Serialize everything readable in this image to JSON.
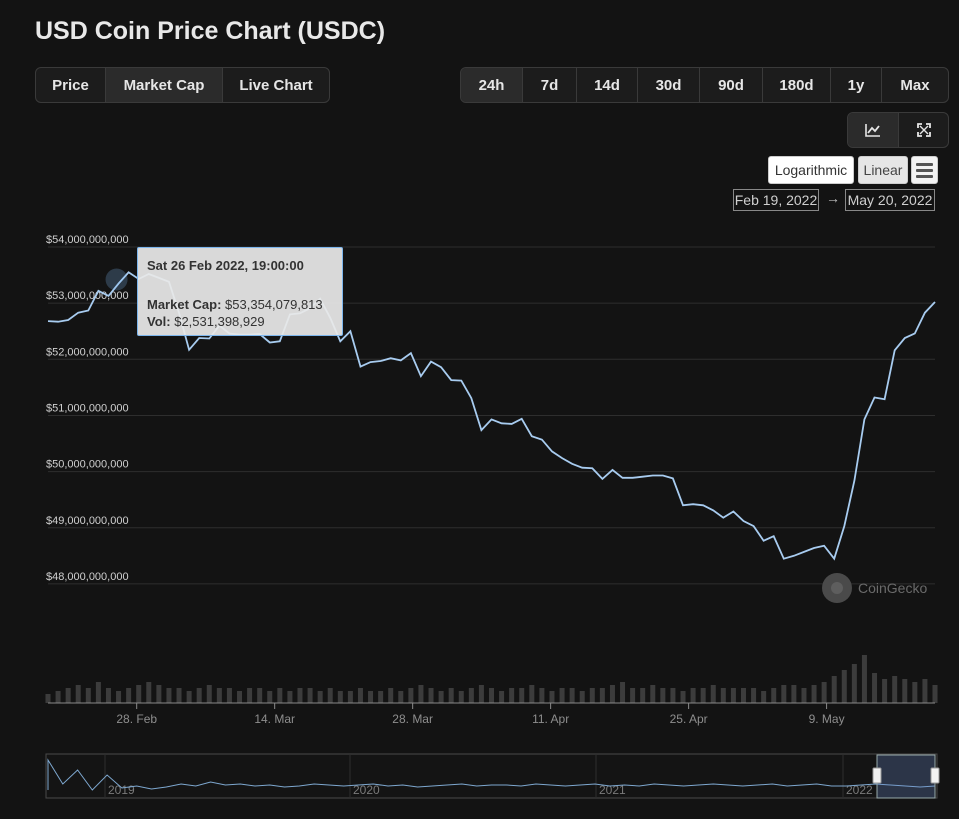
{
  "page": {
    "title": "USD Coin Price Chart (USDC)"
  },
  "metric_tabs": [
    {
      "label": "Price",
      "active": false
    },
    {
      "label": "Market Cap",
      "active": true
    },
    {
      "label": "Live Chart",
      "active": false
    }
  ],
  "range_tabs": [
    {
      "label": "24h",
      "active": true
    },
    {
      "label": "7d",
      "active": false
    },
    {
      "label": "14d",
      "active": false
    },
    {
      "label": "30d",
      "active": false
    },
    {
      "label": "90d",
      "active": false
    },
    {
      "label": "180d",
      "active": false
    },
    {
      "label": "1y",
      "active": false
    },
    {
      "label": "Max",
      "active": false
    }
  ],
  "tools": [
    {
      "icon": "line-chart-icon"
    },
    {
      "icon": "fullscreen-icon"
    }
  ],
  "scale": {
    "log_label": "Logarithmic",
    "linear_label": "Linear",
    "menu_icon": "hamburger-menu-icon"
  },
  "date_range": {
    "from": "Feb 19, 2022",
    "arrow": "→",
    "to": "May 20, 2022"
  },
  "tooltip": {
    "date": "Sat 26 Feb 2022, 19:00:00",
    "mcap_label": "Market Cap:",
    "mcap_value": "$53,354,079,813",
    "vol_label": "Vol:",
    "vol_value": "$2,531,398,929"
  },
  "watermark": "CoinGecko",
  "colors": {
    "line": "#a8ccf0",
    "grid": "#2e2e2e",
    "volume": "#3c3c3c",
    "tooltip_border": "#7cb5ec"
  },
  "chart_data": {
    "type": "line",
    "title": "",
    "ylabel": "Market Cap",
    "ylim": [
      47500000000,
      54000000000
    ],
    "y_ticks": [
      {
        "value": 54000000000,
        "label": "$54,000,000,000"
      },
      {
        "value": 53000000000,
        "label": "$53,000,000,000"
      },
      {
        "value": 52000000000,
        "label": "$52,000,000,000"
      },
      {
        "value": 51000000000,
        "label": "$51,000,000,000"
      },
      {
        "value": 50000000000,
        "label": "$50,000,000,000"
      },
      {
        "value": 49000000000,
        "label": "$49,000,000,000"
      },
      {
        "value": 48000000000,
        "label": "$48,000,000,000"
      }
    ],
    "x_domain": [
      "2022-02-19",
      "2022-05-20"
    ],
    "x_ticks": [
      {
        "date": "2022-02-28",
        "label": "28. Feb"
      },
      {
        "date": "2022-03-14",
        "label": "14. Mar"
      },
      {
        "date": "2022-03-28",
        "label": "28. Mar"
      },
      {
        "date": "2022-04-11",
        "label": "11. Apr"
      },
      {
        "date": "2022-04-25",
        "label": "25. Apr"
      },
      {
        "date": "2022-05-09",
        "label": "9. May"
      }
    ],
    "series": [
      {
        "name": "Market Cap",
        "values": [
          52.68,
          52.67,
          52.7,
          52.83,
          52.87,
          53.22,
          53.13,
          53.35,
          53.55,
          53.43,
          53.52,
          53.45,
          53.38,
          52.83,
          52.17,
          52.38,
          52.37,
          52.6,
          52.46,
          52.44,
          52.44,
          52.45,
          52.3,
          52.32,
          52.8,
          52.82,
          52.91,
          53.08,
          52.74,
          52.32,
          52.5,
          51.87,
          51.95,
          51.97,
          52.02,
          51.98,
          52.11,
          51.7,
          51.96,
          51.86,
          51.63,
          51.62,
          51.31,
          50.74,
          50.93,
          50.86,
          50.85,
          50.94,
          50.63,
          50.57,
          50.36,
          50.24,
          50.14,
          50.07,
          50.06,
          49.87,
          50.03,
          49.89,
          49.89,
          49.91,
          49.93,
          49.93,
          49.88,
          49.4,
          49.42,
          49.4,
          49.31,
          49.18,
          49.29,
          49.12,
          49.03,
          48.77,
          48.85,
          48.45,
          48.5,
          48.57,
          48.64,
          48.68,
          48.45,
          49.03,
          49.84,
          50.93,
          51.32,
          51.29,
          52.16,
          52.38,
          52.46,
          52.83,
          53.02
        ],
        "unit": "billion USD"
      }
    ],
    "volume": {
      "unit": "relative",
      "values": [
        0.3,
        0.4,
        0.5,
        0.6,
        0.5,
        0.7,
        0.5,
        0.4,
        0.5,
        0.6,
        0.7,
        0.6,
        0.5,
        0.5,
        0.4,
        0.5,
        0.6,
        0.5,
        0.5,
        0.4,
        0.5,
        0.5,
        0.4,
        0.5,
        0.4,
        0.5,
        0.5,
        0.4,
        0.5,
        0.4,
        0.4,
        0.5,
        0.4,
        0.4,
        0.5,
        0.4,
        0.5,
        0.6,
        0.5,
        0.4,
        0.5,
        0.4,
        0.5,
        0.6,
        0.5,
        0.4,
        0.5,
        0.5,
        0.6,
        0.5,
        0.4,
        0.5,
        0.5,
        0.4,
        0.5,
        0.5,
        0.6,
        0.7,
        0.5,
        0.5,
        0.6,
        0.5,
        0.5,
        0.4,
        0.5,
        0.5,
        0.6,
        0.5,
        0.5,
        0.5,
        0.5,
        0.4,
        0.5,
        0.6,
        0.6,
        0.5,
        0.6,
        0.7,
        0.9,
        1.1,
        1.3,
        1.6,
        1.0,
        0.8,
        0.9,
        0.8,
        0.7,
        0.8,
        0.6
      ]
    },
    "navigator": {
      "labels": [
        "2019",
        "2020",
        "2021",
        "2022"
      ]
    },
    "grid": true,
    "legend": "none"
  }
}
